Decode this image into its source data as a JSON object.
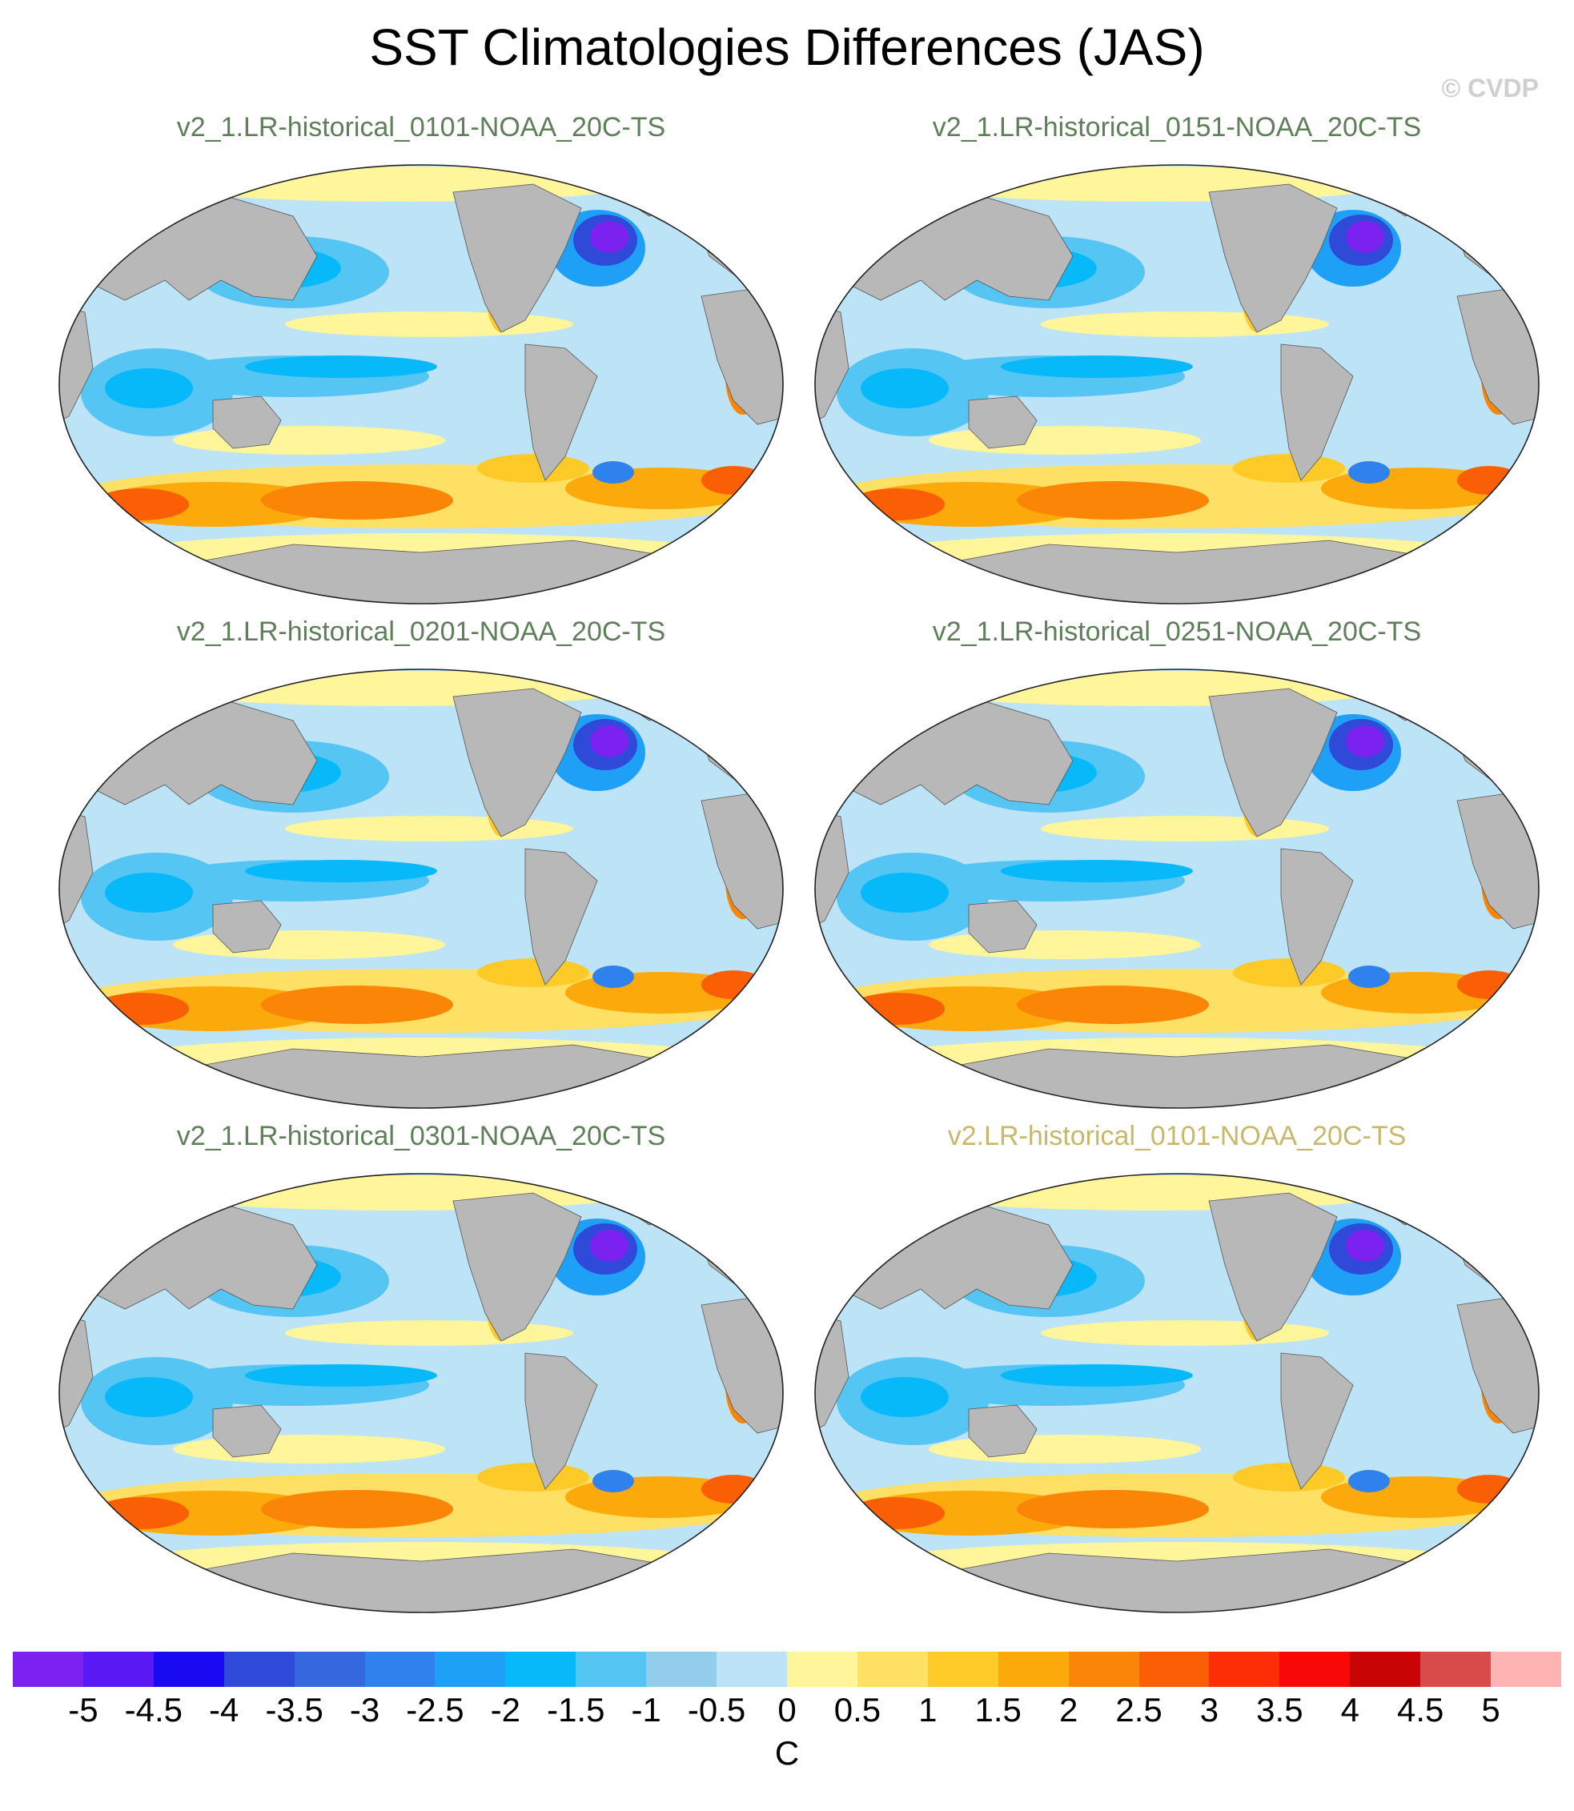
{
  "title": "SST Climatologies Differences (JAS)",
  "copyright": "© CVDP",
  "panels": [
    {
      "label": "v2_1.LR-historical_0101-NOAA_20C-TS",
      "highlight": false
    },
    {
      "label": "v2_1.LR-historical_0151-NOAA_20C-TS",
      "highlight": false
    },
    {
      "label": "v2_1.LR-historical_0201-NOAA_20C-TS",
      "highlight": false
    },
    {
      "label": "v2_1.LR-historical_0251-NOAA_20C-TS",
      "highlight": false
    },
    {
      "label": "v2_1.LR-historical_0301-NOAA_20C-TS",
      "highlight": false
    },
    {
      "label": "v2.LR-historical_0101-NOAA_20C-TS",
      "highlight": true
    }
  ],
  "colorbar": {
    "unit": "C",
    "tick_labels": [
      "-5",
      "-4.5",
      "-4",
      "-3.5",
      "-3",
      "-2.5",
      "-2",
      "-1.5",
      "-1",
      "-0.5",
      "0",
      "0.5",
      "1",
      "1.5",
      "2",
      "2.5",
      "3",
      "3.5",
      "4",
      "4.5",
      "5"
    ],
    "colors": [
      "#7b22f0",
      "#5a18f5",
      "#1a0af2",
      "#2f4ad8",
      "#3567de",
      "#2f82ee",
      "#1fa0f7",
      "#08b9f9",
      "#55c5f3",
      "#93cdec",
      "#bde3f6",
      "#fff59a",
      "#fee064",
      "#fdca28",
      "#fca90c",
      "#fb8506",
      "#fb5f06",
      "#fb2e06",
      "#f80806",
      "#c80404",
      "#d94a4a",
      "#ffb4b4"
    ]
  },
  "colors": {
    "land": "#b8b8b8",
    "ocean_base": "#bde3f6",
    "label_green": "#5f7f5a",
    "label_yellow": "#c8b86a"
  }
}
